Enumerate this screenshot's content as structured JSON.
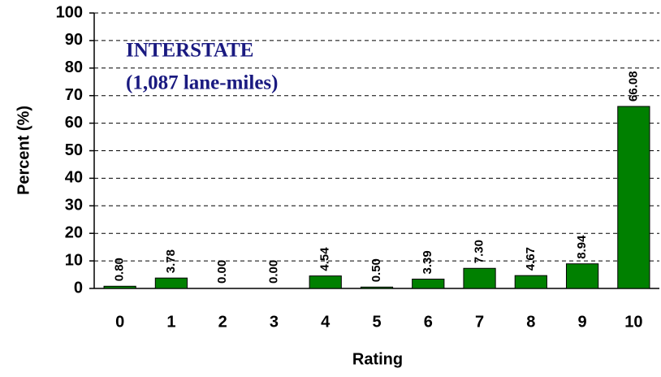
{
  "chart_data": {
    "type": "bar",
    "annotations": [
      "INTERSTATE",
      "(1,087 lane-miles)"
    ],
    "x_label": "Rating",
    "y_label": "Percent (%)",
    "categories": [
      "0",
      "1",
      "2",
      "3",
      "4",
      "5",
      "6",
      "7",
      "8",
      "9",
      "10"
    ],
    "values": [
      0.8,
      3.78,
      0,
      0,
      4.54,
      0.5,
      3.39,
      7.3,
      4.67,
      8.94,
      66.08
    ],
    "value_labels": [
      "0.80",
      "3.78",
      "0.00",
      "0.00",
      "4.54",
      "0.50",
      "3.39",
      "7.30",
      "4.67",
      "8.94",
      "66.08"
    ],
    "color": "#008000",
    "ylim": [
      0,
      100
    ],
    "yticks": [
      0,
      10,
      20,
      30,
      40,
      50,
      60,
      70,
      80,
      90,
      100
    ],
    "grid": true
  }
}
